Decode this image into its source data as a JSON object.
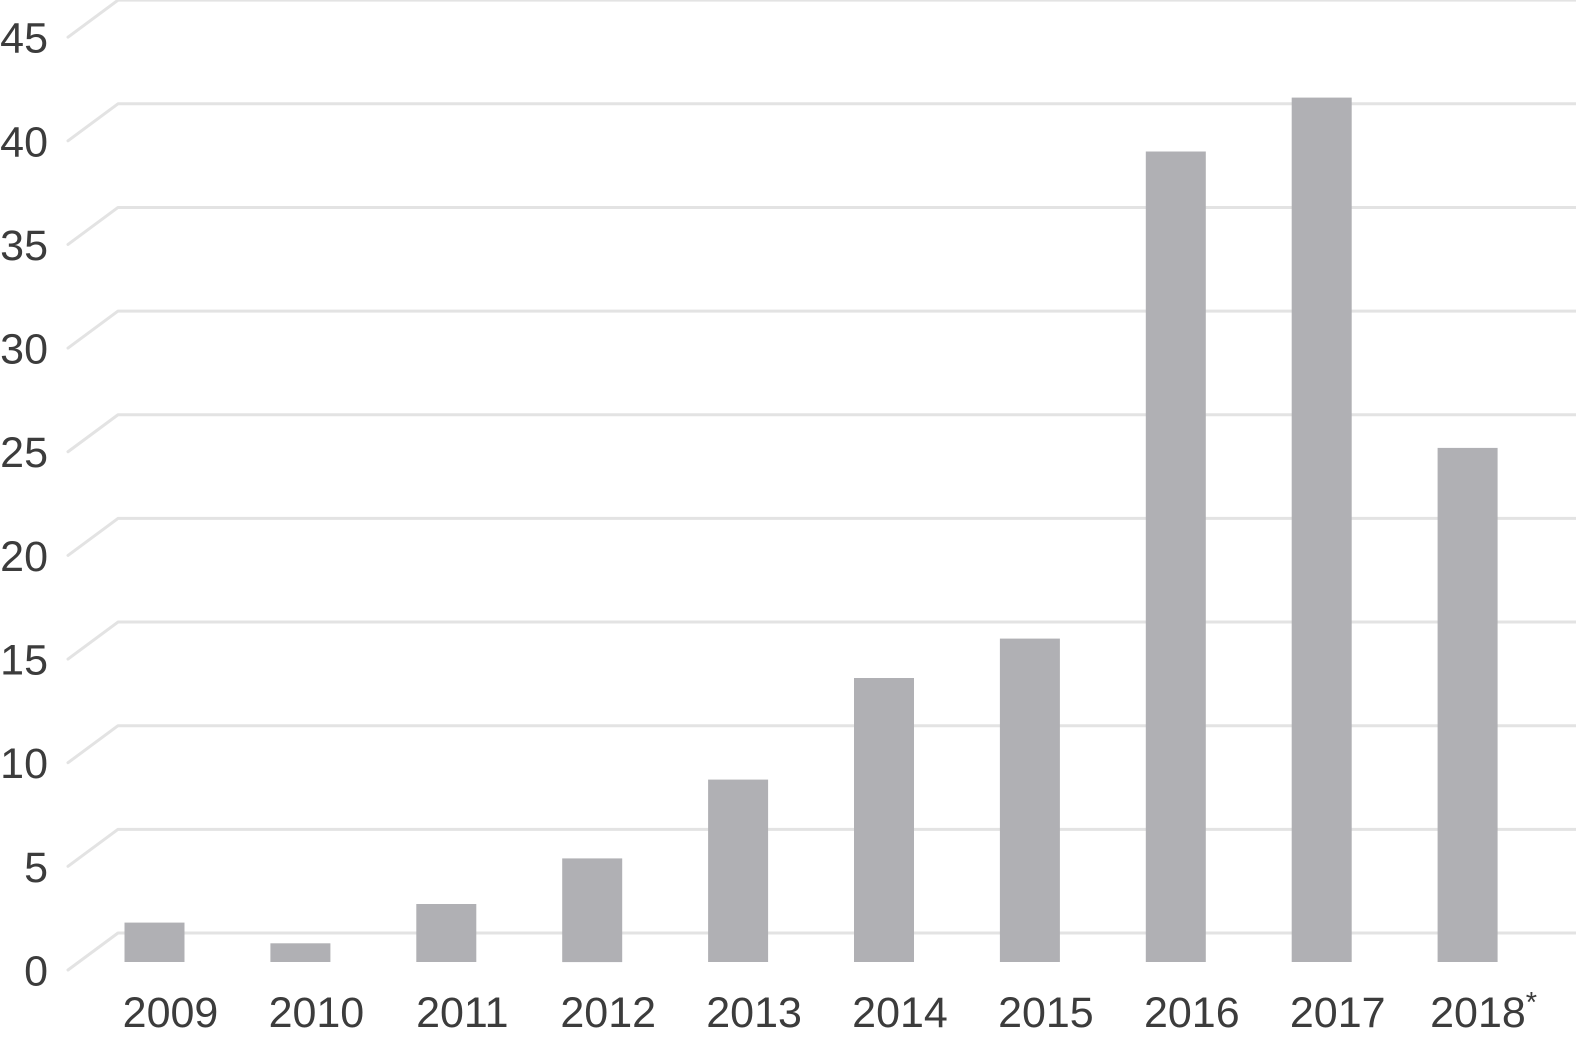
{
  "chart_data": {
    "type": "bar",
    "title": "",
    "xlabel": "",
    "ylabel": "",
    "categories": [
      "2009",
      "2010",
      "2011",
      "2012",
      "2013",
      "2014",
      "2015",
      "2016",
      "2017",
      "2018"
    ],
    "category_superscripts": [
      "",
      "",
      "",
      "",
      "",
      "",
      "",
      "",
      "",
      "*"
    ],
    "values": [
      1.9,
      0.9,
      2.8,
      5.0,
      8.8,
      13.7,
      15.6,
      39.1,
      41.7,
      24.8
    ],
    "yticks": [
      0,
      5,
      10,
      15,
      20,
      25,
      30,
      35,
      40,
      45
    ],
    "ylim": [
      0,
      45
    ],
    "grid": "horizontal-with-left-bevel",
    "legend": "none",
    "colors": {
      "bar": "#b0b0b4",
      "gridline": "#e3e3e3",
      "label": "#3c3c3c",
      "background": "#ffffff"
    }
  }
}
